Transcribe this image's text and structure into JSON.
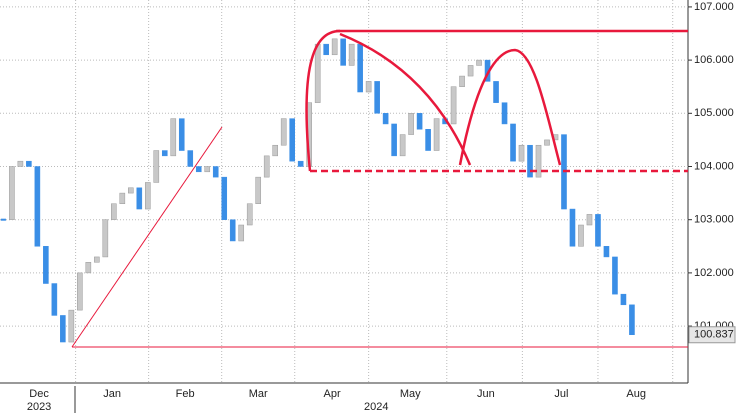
{
  "chart_data": {
    "type": "candlestick",
    "values": [
      103.0,
      104.0,
      104.1,
      104.0,
      102.5,
      101.8,
      101.2,
      100.7,
      101.3,
      102.0,
      102.2,
      102.3,
      103.0,
      103.3,
      103.5,
      103.6,
      103.2,
      103.7,
      104.3,
      104.2,
      104.9,
      104.3,
      104.0,
      103.9,
      104.0,
      103.8,
      103.0,
      102.6,
      102.9,
      103.3,
      103.8,
      104.2,
      104.4,
      104.9,
      104.1,
      104.0,
      105.2,
      106.3,
      106.1,
      106.4,
      105.9,
      106.3,
      105.4,
      105.6,
      105.0,
      104.8,
      104.2,
      104.6,
      105.0,
      104.7,
      104.3,
      104.9,
      104.8,
      105.5,
      105.7,
      105.9,
      106.0,
      105.6,
      105.2,
      104.8,
      104.1,
      104.4,
      103.8,
      104.4,
      104.5,
      104.6,
      103.2,
      102.5,
      102.9,
      103.1,
      102.5,
      102.3,
      101.6,
      101.4,
      100.837
    ],
    "up_color": "#c8c8c8",
    "down_color": "#3a8ee6",
    "xlim": [
      -0.4,
      80.6
    ],
    "xticks": [
      {
        "value": 4.2,
        "label": "Dec"
      },
      {
        "value": 12.8,
        "label": "Jan"
      },
      {
        "value": 21.4,
        "label": "Feb"
      },
      {
        "value": 30.0,
        "label": "Mar"
      },
      {
        "value": 38.7,
        "label": "Apr"
      },
      {
        "value": 47.9,
        "label": "May"
      },
      {
        "value": 56.8,
        "label": "Jun"
      },
      {
        "value": 65.7,
        "label": "Jul"
      },
      {
        "value": 74.5,
        "label": "Aug"
      }
    ],
    "year_labels": [
      {
        "value": 4.2,
        "label": "2023"
      },
      {
        "value": 43.9,
        "label": "2024"
      }
    ],
    "ylim": [
      99.93,
      107.13
    ],
    "yticks": [
      {
        "value": 101,
        "label": "101.000"
      },
      {
        "value": 102,
        "label": "102.000"
      },
      {
        "value": 103,
        "label": "103.000"
      },
      {
        "value": 104,
        "label": "104.000"
      },
      {
        "value": 105,
        "label": "105.000"
      },
      {
        "value": 106,
        "label": "106.000"
      },
      {
        "value": 107,
        "label": "107.000"
      }
    ],
    "last_price": 100.837,
    "grid": true
  }
}
